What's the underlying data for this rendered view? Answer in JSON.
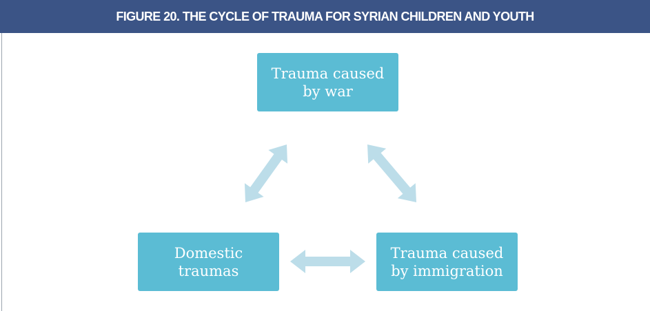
{
  "header": {
    "title": "FIGURE 20. THE CYCLE OF TRAUMA FOR SYRIAN CHILDREN AND YOUTH"
  },
  "nodes": [
    {
      "label": "Trauma caused by war"
    },
    {
      "label": "Domestic traumas"
    },
    {
      "label": "Trauma caused by immigration"
    }
  ]
}
